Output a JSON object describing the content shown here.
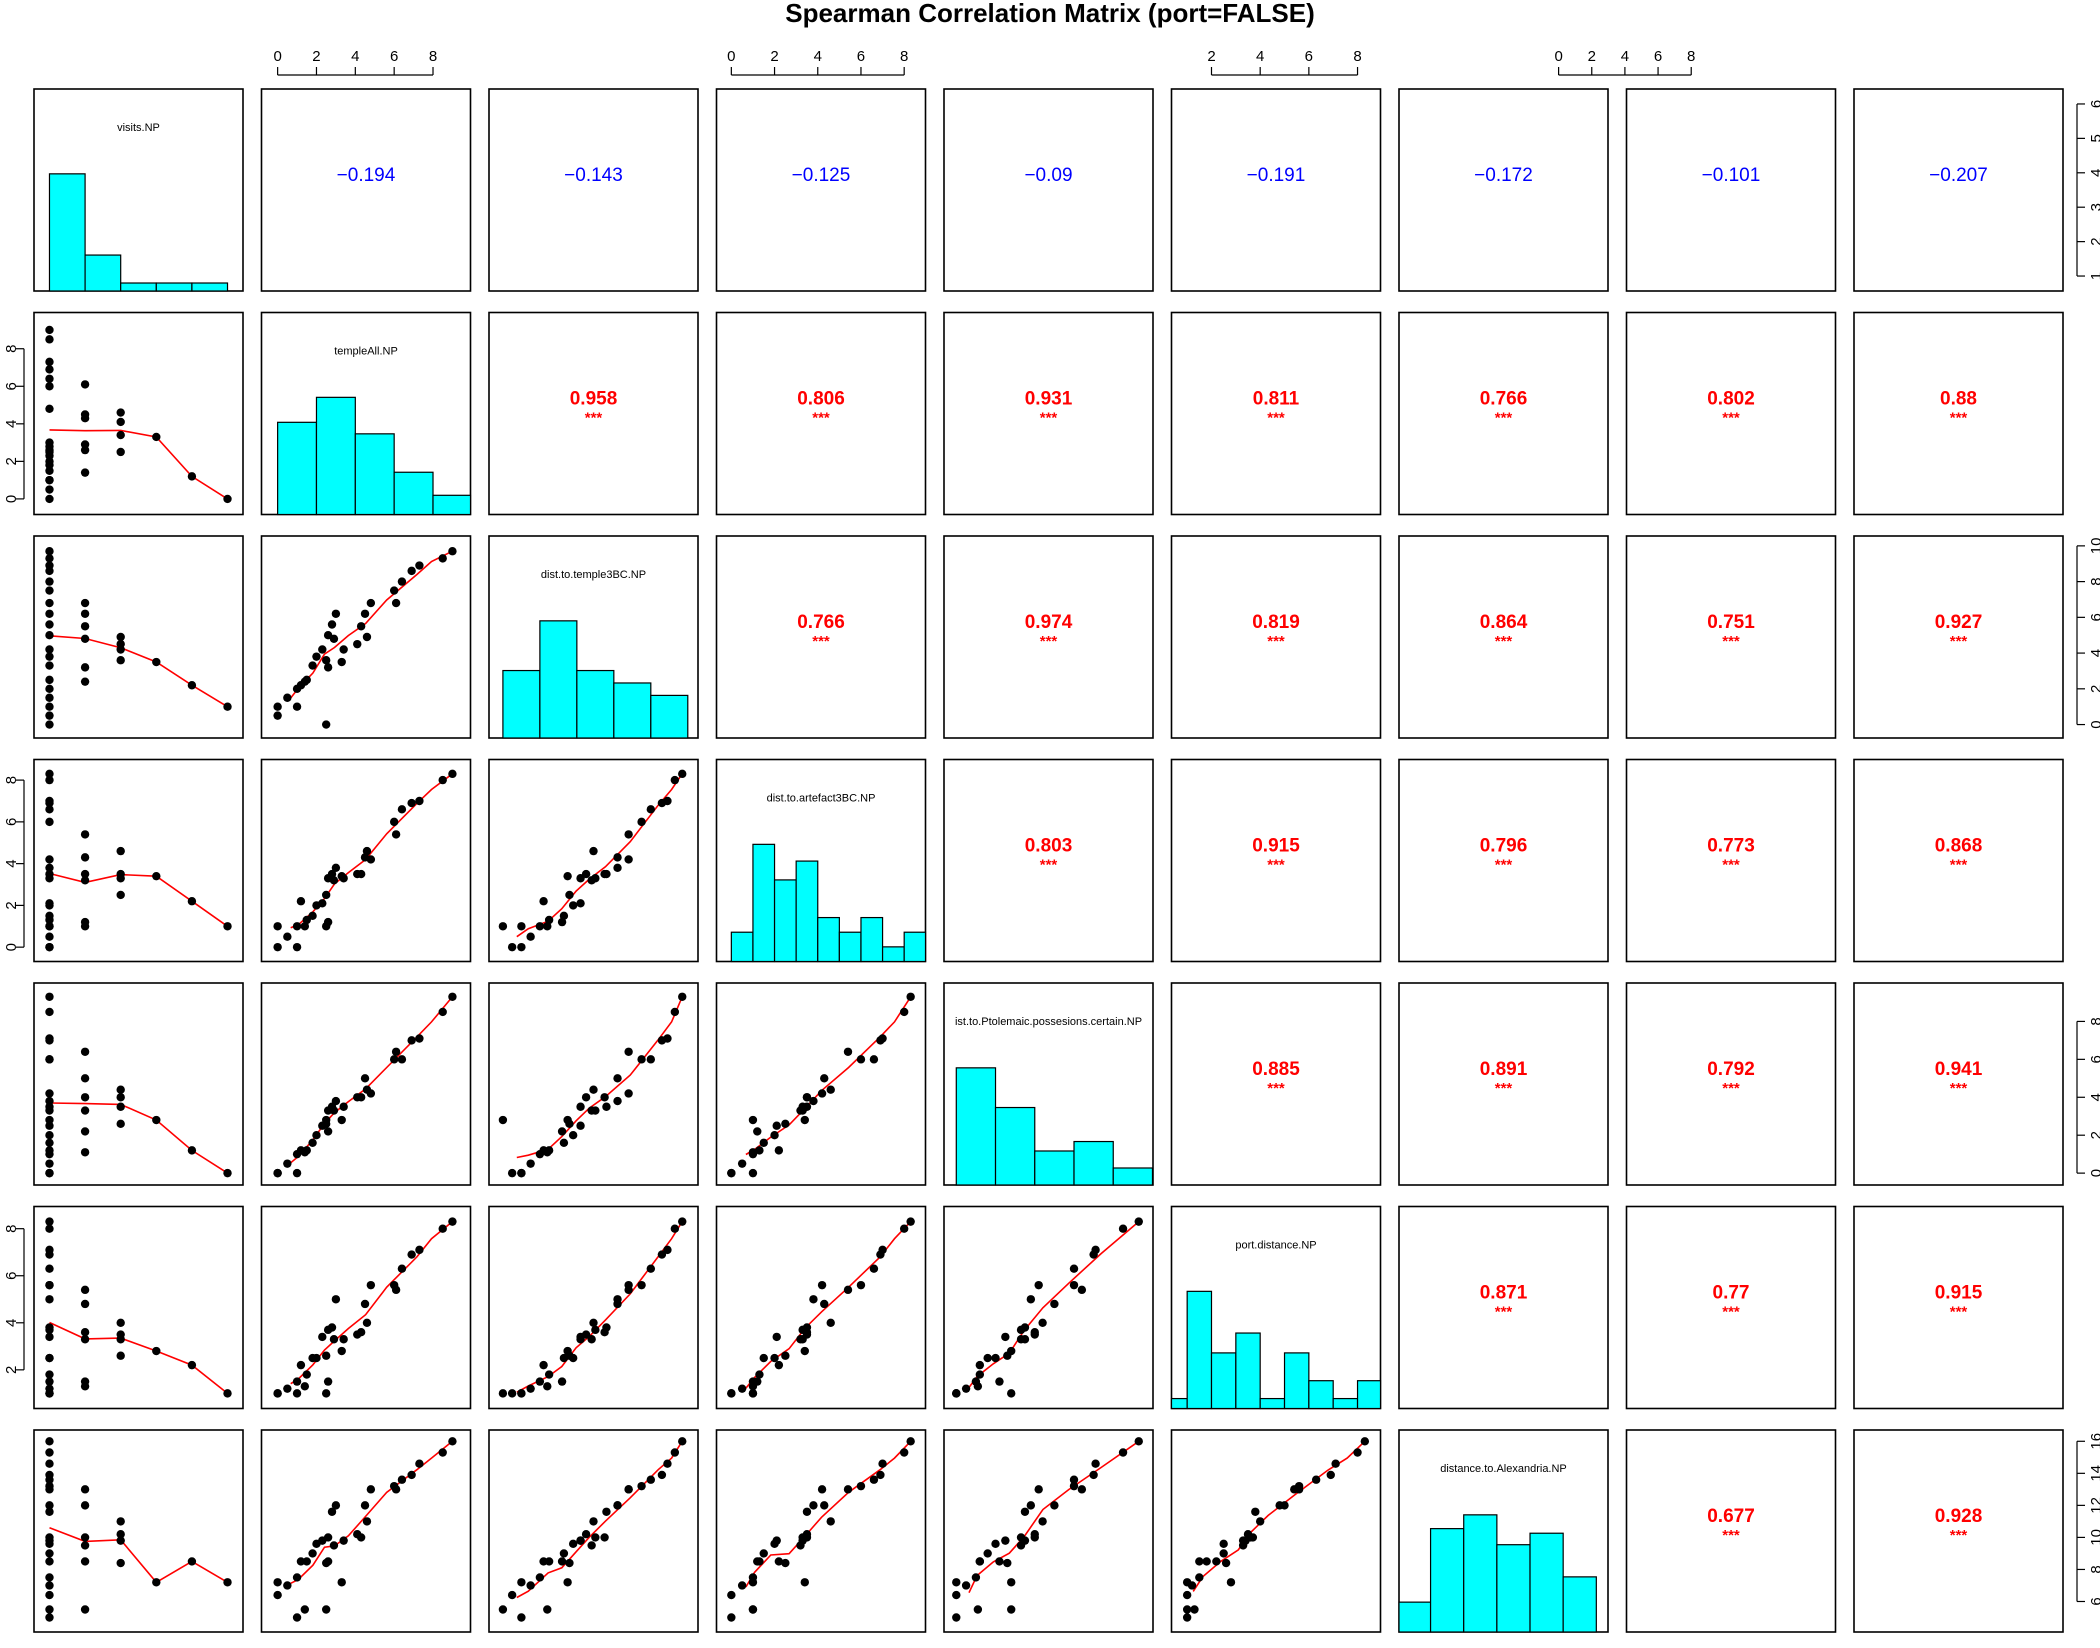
{
  "chart_data": {
    "type": "scatter",
    "title": "Spearman Correlation Matrix (port=FALSE)",
    "variables": [
      "visits.NP",
      "templeAll.NP",
      "dist.to.temple3BC.NP",
      "dist.to.artefact3BC.NP",
      "ist.to.Ptolemaic.possesions.certain.NP",
      "port.distance.NP",
      "distance.to.Alexandria.NP"
    ],
    "extra_columns": 2,
    "ranges": [
      [
        0.8,
        6.2
      ],
      [
        -0.4,
        9.5
      ],
      [
        -0.3,
        10.1
      ],
      [
        -0.3,
        8.6
      ],
      [
        -0.2,
        9.6
      ],
      [
        0.7,
        8.6
      ],
      [
        4.6,
        16.2
      ]
    ],
    "axes": {
      "top": [
        {
          "col": 1,
          "ticks": [
            "0",
            "2",
            "4",
            "6",
            "8"
          ]
        },
        {
          "col": 3,
          "ticks": [
            "0",
            "2",
            "4",
            "6",
            "8"
          ]
        },
        {
          "col": 5,
          "ticks": [
            "2",
            "4",
            "6",
            "8"
          ]
        },
        {
          "col": 7,
          "ticks": [
            "0",
            "2",
            "4",
            "6",
            "8"
          ]
        }
      ],
      "right": [
        {
          "row": 0,
          "ticks": [
            "1",
            "2",
            "3",
            "4",
            "5",
            "6"
          ]
        },
        {
          "row": 2,
          "ticks": [
            "0",
            "2",
            "4",
            "6",
            "8",
            "10"
          ]
        },
        {
          "row": 4,
          "ticks": [
            "0",
            "2",
            "4",
            "6",
            "8"
          ]
        },
        {
          "row": 6,
          "ticks": [
            "6",
            "8",
            "10",
            "12",
            "14",
            "16"
          ]
        }
      ],
      "left": [
        {
          "row": 1,
          "ticks": [
            "0",
            "2",
            "4",
            "6",
            "8"
          ]
        },
        {
          "row": 3,
          "ticks": [
            "0",
            "2",
            "4",
            "6",
            "8"
          ]
        },
        {
          "row": 5,
          "ticks": [
            "2",
            "4",
            "6",
            "8"
          ]
        }
      ]
    },
    "correlations": [
      {
        "row": 0,
        "col": 1,
        "value": "-0.194",
        "stars": ""
      },
      {
        "row": 0,
        "col": 2,
        "value": "-0.143",
        "stars": ""
      },
      {
        "row": 0,
        "col": 3,
        "value": "-0.125",
        "stars": ""
      },
      {
        "row": 0,
        "col": 4,
        "value": "-0.09",
        "stars": ""
      },
      {
        "row": 0,
        "col": 5,
        "value": "-0.191",
        "stars": ""
      },
      {
        "row": 0,
        "col": 6,
        "value": "-0.172",
        "stars": ""
      },
      {
        "row": 0,
        "col": 7,
        "value": "-0.101",
        "stars": ""
      },
      {
        "row": 0,
        "col": 8,
        "value": "-0.207",
        "stars": ""
      },
      {
        "row": 1,
        "col": 2,
        "value": "0.958",
        "stars": "***"
      },
      {
        "row": 1,
        "col": 3,
        "value": "0.806",
        "stars": "***"
      },
      {
        "row": 1,
        "col": 4,
        "value": "0.931",
        "stars": "***"
      },
      {
        "row": 1,
        "col": 5,
        "value": "0.811",
        "stars": "***"
      },
      {
        "row": 1,
        "col": 6,
        "value": "0.766",
        "stars": "***"
      },
      {
        "row": 1,
        "col": 7,
        "value": "0.802",
        "stars": "***"
      },
      {
        "row": 1,
        "col": 8,
        "value": "0.88",
        "stars": "***"
      },
      {
        "row": 2,
        "col": 3,
        "value": "0.766",
        "stars": "***"
      },
      {
        "row": 2,
        "col": 4,
        "value": "0.974",
        "stars": "***"
      },
      {
        "row": 2,
        "col": 5,
        "value": "0.819",
        "stars": "***"
      },
      {
        "row": 2,
        "col": 6,
        "value": "0.864",
        "stars": "***"
      },
      {
        "row": 2,
        "col": 7,
        "value": "0.751",
        "stars": "***"
      },
      {
        "row": 2,
        "col": 8,
        "value": "0.927",
        "stars": "***"
      },
      {
        "row": 3,
        "col": 4,
        "value": "0.803",
        "stars": "***"
      },
      {
        "row": 3,
        "col": 5,
        "value": "0.915",
        "stars": "***"
      },
      {
        "row": 3,
        "col": 6,
        "value": "0.796",
        "stars": "***"
      },
      {
        "row": 3,
        "col": 7,
        "value": "0.773",
        "stars": "***"
      },
      {
        "row": 3,
        "col": 8,
        "value": "0.868",
        "stars": "***"
      },
      {
        "row": 4,
        "col": 5,
        "value": "0.885",
        "stars": "***"
      },
      {
        "row": 4,
        "col": 6,
        "value": "0.891",
        "stars": "***"
      },
      {
        "row": 4,
        "col": 7,
        "value": "0.792",
        "stars": "***"
      },
      {
        "row": 4,
        "col": 8,
        "value": "0.941",
        "stars": "***"
      },
      {
        "row": 5,
        "col": 6,
        "value": "0.871",
        "stars": "***"
      },
      {
        "row": 5,
        "col": 7,
        "value": "0.77",
        "stars": "***"
      },
      {
        "row": 5,
        "col": 8,
        "value": "0.915",
        "stars": "***"
      },
      {
        "row": 6,
        "col": 7,
        "value": "0.677",
        "stars": "***"
      },
      {
        "row": 6,
        "col": 8,
        "value": "0.928",
        "stars": "***"
      }
    ],
    "histograms": [
      {
        "var": 0,
        "bins": [
          [
            1,
            2,
            4.4
          ],
          [
            2,
            3,
            1.35
          ],
          [
            3,
            4,
            0.3
          ],
          [
            4,
            5,
            0.3
          ],
          [
            5,
            6,
            0.3
          ]
        ]
      },
      {
        "var": 1,
        "bins": [
          [
            0,
            2,
            4.8
          ],
          [
            2,
            4,
            6.1
          ],
          [
            4,
            6,
            4.2
          ],
          [
            6,
            8,
            2.2
          ],
          [
            8,
            10,
            1.0
          ]
        ]
      },
      {
        "var": 2,
        "bins": [
          [
            0,
            2,
            3.8
          ],
          [
            2,
            4,
            6.6
          ],
          [
            4,
            6,
            3.8
          ],
          [
            6,
            8,
            3.1
          ],
          [
            8,
            10,
            2.4
          ]
        ]
      },
      {
        "var": 3,
        "bins": [
          [
            0,
            1,
            1.4
          ],
          [
            1,
            2,
            5.6
          ],
          [
            2,
            3,
            3.9
          ],
          [
            3,
            4,
            4.8
          ],
          [
            4,
            5,
            2.1
          ],
          [
            5,
            6,
            1.4
          ],
          [
            6,
            7,
            2.1
          ],
          [
            7,
            8,
            0.7
          ],
          [
            8,
            9,
            1.4
          ]
        ]
      },
      {
        "var": 4,
        "bins": [
          [
            0,
            2,
            6.2
          ],
          [
            2,
            4,
            4.1
          ],
          [
            4,
            6,
            1.8
          ],
          [
            6,
            8,
            2.3
          ],
          [
            8,
            10,
            0.9
          ]
        ]
      },
      {
        "var": 5,
        "bins": [
          [
            0,
            1,
            0.5
          ],
          [
            1,
            2,
            5.9
          ],
          [
            2,
            3,
            2.8
          ],
          [
            3,
            4,
            3.8
          ],
          [
            4,
            5,
            0.5
          ],
          [
            5,
            6,
            2.8
          ],
          [
            6,
            7,
            1.4
          ],
          [
            7,
            8,
            0.5
          ],
          [
            8,
            9,
            1.4
          ]
        ]
      },
      {
        "var": 6,
        "bins": [
          [
            4,
            6,
            1.3
          ],
          [
            6,
            8,
            4.5
          ],
          [
            8,
            10,
            5.1
          ],
          [
            10,
            12,
            3.8
          ],
          [
            12,
            14,
            4.3
          ],
          [
            14,
            16,
            2.4
          ]
        ]
      }
    ],
    "points": [
      [
        1,
        9.0,
        9.7,
        8.3,
        9.3,
        8.3,
        16.0
      ],
      [
        1,
        8.5,
        9.3,
        8.0,
        8.5,
        8.0,
        15.3
      ],
      [
        1,
        7.3,
        8.9,
        7.0,
        7.1,
        7.1,
        14.6
      ],
      [
        1,
        6.9,
        8.6,
        6.9,
        7.0,
        6.9,
        13.9
      ],
      [
        1,
        6.4,
        8.0,
        6.6,
        6.0,
        6.3,
        13.6
      ],
      [
        1,
        6.0,
        7.5,
        6.0,
        6.0,
        5.6,
        13.2
      ],
      [
        1,
        4.8,
        6.8,
        4.2,
        4.2,
        5.6,
        13.0
      ],
      [
        1,
        3.0,
        6.2,
        3.8,
        3.8,
        5.0,
        12.0
      ],
      [
        1,
        2.8,
        5.6,
        3.5,
        3.5,
        3.8,
        11.6
      ],
      [
        1,
        2.6,
        5.0,
        3.3,
        3.3,
        3.7,
        10.0
      ],
      [
        1,
        2.3,
        4.2,
        2.1,
        2.5,
        3.4,
        9.8
      ],
      [
        1,
        2.0,
        3.8,
        2.0,
        2.0,
        2.5,
        9.6
      ],
      [
        1,
        1.8,
        3.3,
        1.5,
        1.6,
        2.5,
        9.0
      ],
      [
        1,
        1.5,
        2.5,
        1.3,
        1.2,
        1.8,
        8.5
      ],
      [
        1,
        1.0,
        2.0,
        1.0,
        1.0,
        1.5,
        7.5
      ],
      [
        1,
        0.5,
        1.5,
        0.5,
        0.5,
        1.2,
        7.0
      ],
      [
        1,
        0.0,
        0.5,
        0.0,
        0.0,
        1.0,
        6.4
      ],
      [
        1,
        2.5,
        0.0,
        1.0,
        2.8,
        1.0,
        5.5
      ],
      [
        1,
        1.0,
        1.0,
        0.0,
        0.0,
        1.0,
        5.0
      ],
      [
        2,
        6.1,
        6.8,
        5.4,
        6.4,
        5.4,
        13.0
      ],
      [
        2,
        4.5,
        6.2,
        4.3,
        5.0,
        4.8,
        12.0
      ],
      [
        2,
        4.3,
        5.5,
        3.5,
        4.0,
        3.6,
        10.0
      ],
      [
        2,
        2.9,
        4.8,
        3.2,
        3.3,
        3.3,
        9.5
      ],
      [
        2,
        2.6,
        3.2,
        1.2,
        2.2,
        1.5,
        8.5
      ],
      [
        2,
        1.4,
        2.4,
        1.0,
        1.1,
        1.3,
        5.5
      ],
      [
        3,
        4.6,
        4.9,
        4.6,
        4.4,
        4.0,
        11.0
      ],
      [
        3,
        4.1,
        4.5,
        3.5,
        4.0,
        3.5,
        10.2
      ],
      [
        3,
        3.4,
        4.2,
        3.3,
        3.5,
        3.3,
        9.8
      ],
      [
        3,
        2.5,
        3.6,
        2.5,
        2.6,
        2.6,
        8.4
      ],
      [
        4,
        3.3,
        3.5,
        3.4,
        2.8,
        2.8,
        7.2
      ],
      [
        5,
        1.2,
        2.2,
        2.2,
        1.2,
        2.2,
        8.5
      ],
      [
        6,
        0.0,
        1.0,
        1.0,
        0.0,
        1.0,
        7.2
      ]
    ]
  }
}
